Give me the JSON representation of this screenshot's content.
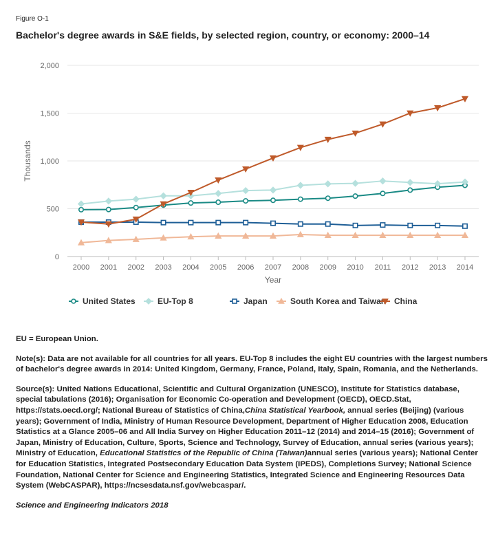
{
  "figure_label": "Figure O-1",
  "title": "Bachelor's degree awards in S&E fields, by selected region, country, or economy: 2000–14",
  "chart_data": {
    "type": "line",
    "title": "Bachelor's degree awards in S&E fields, by selected region, country, or economy: 2000–14",
    "xlabel": "Year",
    "ylabel": "Thousands",
    "x": [
      2000,
      2001,
      2002,
      2003,
      2004,
      2005,
      2006,
      2007,
      2008,
      2009,
      2010,
      2011,
      2012,
      2013,
      2014
    ],
    "ylim": [
      0,
      2000
    ],
    "yticks": [
      0,
      500,
      1000,
      1500,
      2000
    ],
    "ytick_labels": [
      "0",
      "500",
      "1,000",
      "1,500",
      "2,000"
    ],
    "grid": true,
    "legend_position": "bottom",
    "series": [
      {
        "name": "United States",
        "color": "#1a8a85",
        "marker": "circle",
        "values": [
          490,
          492,
          513,
          538,
          560,
          568,
          582,
          588,
          600,
          610,
          632,
          660,
          695,
          725,
          745
        ]
      },
      {
        "name": "EU-Top 8",
        "color": "#b5e0dd",
        "marker": "diamond",
        "values": [
          550,
          580,
          600,
          635,
          635,
          660,
          690,
          695,
          745,
          760,
          765,
          790,
          775,
          762,
          780
        ]
      },
      {
        "name": "Japan",
        "color": "#1e5e96",
        "marker": "square",
        "values": [
          360,
          360,
          360,
          355,
          355,
          355,
          355,
          348,
          340,
          340,
          325,
          330,
          325,
          325,
          318
        ]
      },
      {
        "name": "South Korea and Taiwan",
        "color": "#f0b898",
        "marker": "triangle-up",
        "values": [
          145,
          168,
          180,
          195,
          207,
          215,
          215,
          215,
          230,
          222,
          222,
          222,
          222,
          222,
          222
        ]
      },
      {
        "name": "China",
        "color": "#bf5a2a",
        "marker": "triangle-down",
        "values": [
          360,
          340,
          390,
          550,
          670,
          800,
          915,
          1030,
          1140,
          1225,
          1290,
          1385,
          1500,
          1555,
          1650
        ]
      }
    ]
  },
  "notes": {
    "eu": "EU = European Union.",
    "note": "Note(s): Data are not available for all countries for all years. EU-Top 8 includes the eight EU countries with the largest numbers of bachelor's degree awards in 2014: United Kingdom, Germany, France, Poland, Italy, Spain, Romania, and the Netherlands.",
    "source_part1": "Source(s): United Nations Educational, Scientific and Cultural Organization (UNESCO), Institute for Statistics database, special tabulations (2016); Organisation for Economic Co-operation and Development (OECD), OECD.Stat, https://stats.oecd.org/; National Bureau of Statistics of China,",
    "source_italic1": "China Statistical Yearbook,",
    "source_part2": " annual series (Beijing) (various years); Government of India, Ministry of Human Resource Development, Department of Higher Education 2008, Education Statistics at a Glance 2005–06 and All India Survey on Higher Education 2011–12 (2014) and 2014–15 (2016); Government of Japan, Ministry of Education, Culture, Sports, Science and Technology, Survey of Education, annual series (various years); Ministry of Education, ",
    "source_italic2": "Educational Statistics of the Republic of China (Taiwan)",
    "source_part3": "annual series (various years); National Center for Education Statistics, Integrated Postsecondary Education Data System (IPEDS), Completions Survey; National Science Foundation, National Center for Science and Engineering Statistics, Integrated Science and Engineering Resources Data System (WebCASPAR), https://ncsesdata.nsf.gov/webcaspar/.",
    "footer": "Science and Engineering Indicators 2018"
  }
}
